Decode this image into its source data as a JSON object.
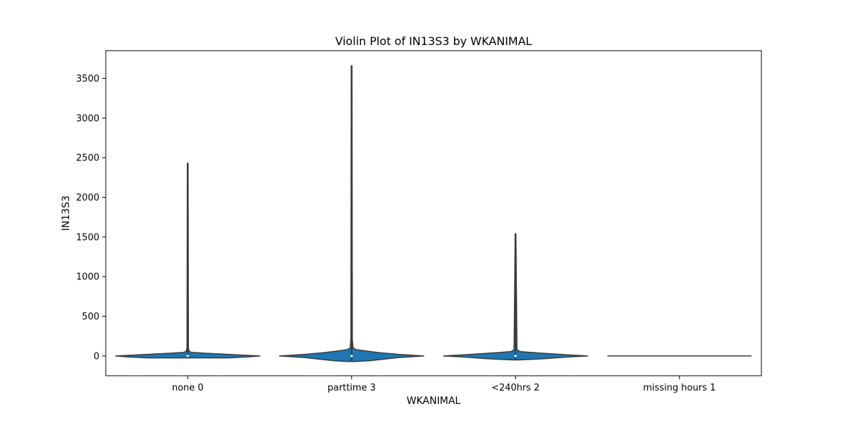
{
  "chart_data": {
    "type": "violin",
    "title": "Violin Plot of IN13S3 by WKANIMAL",
    "xlabel": "WKANIMAL",
    "ylabel": "IN13S3",
    "categories": [
      "none 0",
      "parttime 3",
      "<240hrs 2",
      "missing hours 1"
    ],
    "ylim": [
      -250,
      3850
    ],
    "yticks": [
      0,
      500,
      1000,
      1500,
      2000,
      2500,
      3000,
      3500
    ],
    "ytick_labels": [
      "0",
      "500",
      "1000",
      "1500",
      "2000",
      "2500",
      "3000",
      "3500"
    ],
    "grid": false,
    "legend": "none",
    "violin_color": "#1f77b4",
    "edge_color": "#3a3a3a",
    "violins": [
      {
        "category": "none 0",
        "min": -25,
        "max": 2430,
        "density": [
          [
            -25,
            0.55
          ],
          [
            -12,
            0.85
          ],
          [
            0,
            1.0
          ],
          [
            12,
            0.72
          ],
          [
            25,
            0.45
          ],
          [
            35,
            0.22
          ],
          [
            45,
            0.05
          ],
          [
            60,
            0.02
          ],
          [
            100,
            0.01
          ],
          [
            2430,
            0.005
          ]
        ]
      },
      {
        "category": "parttime 3",
        "min": -70,
        "max": 3660,
        "density": [
          [
            -70,
            0.05
          ],
          [
            -60,
            0.25
          ],
          [
            -40,
            0.45
          ],
          [
            -20,
            0.65
          ],
          [
            0,
            1.0
          ],
          [
            20,
            0.65
          ],
          [
            40,
            0.4
          ],
          [
            60,
            0.22
          ],
          [
            80,
            0.06
          ],
          [
            100,
            0.02
          ],
          [
            200,
            0.01
          ],
          [
            3660,
            0.005
          ]
        ]
      },
      {
        "category": "<240hrs 2",
        "min": -50,
        "max": 1540,
        "density": [
          [
            -50,
            0.05
          ],
          [
            -35,
            0.4
          ],
          [
            -15,
            0.7
          ],
          [
            0,
            1.0
          ],
          [
            15,
            0.7
          ],
          [
            30,
            0.45
          ],
          [
            45,
            0.2
          ],
          [
            55,
            0.06
          ],
          [
            80,
            0.02
          ],
          [
            1540,
            0.005
          ]
        ]
      },
      {
        "category": "missing hours 1",
        "min": 0,
        "max": 0,
        "density": []
      }
    ]
  }
}
